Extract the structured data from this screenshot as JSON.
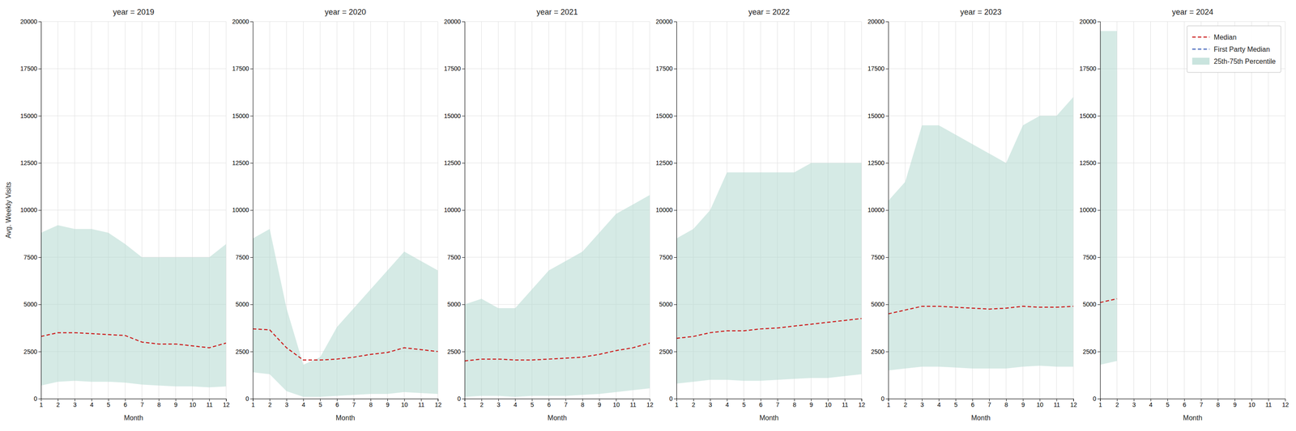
{
  "chart_data": [
    {
      "type": "line",
      "title": "year = 2019",
      "xlabel": "Month",
      "ylabel": "Avg. Weekly Visits",
      "x": [
        1,
        2,
        3,
        4,
        5,
        6,
        7,
        8,
        9,
        10,
        11,
        12
      ],
      "xlim": [
        1,
        12
      ],
      "xticks": [
        1,
        2,
        3,
        4,
        5,
        6,
        7,
        8,
        9,
        10,
        11,
        12
      ],
      "ylim": [
        0,
        20000
      ],
      "yticks": [
        0,
        2500,
        5000,
        7500,
        10000,
        12500,
        15000,
        17500,
        20000
      ],
      "grid": true,
      "legend": false,
      "series": [
        {
          "name": "25th-75th Percentile",
          "type": "band",
          "color": "#b2d8d0",
          "low": [
            700,
            900,
            950,
            900,
            900,
            850,
            750,
            700,
            650,
            650,
            600,
            650
          ],
          "high": [
            8800,
            9200,
            9000,
            9000,
            8800,
            8200,
            7500,
            7500,
            7500,
            7500,
            7500,
            8200
          ]
        },
        {
          "name": "Median",
          "type": "line",
          "color": "#cc2222",
          "line_style": "dashed",
          "values": [
            3300,
            3500,
            3500,
            3450,
            3400,
            3350,
            3000,
            2900,
            2900,
            2800,
            2700,
            2950
          ]
        }
      ]
    },
    {
      "type": "line",
      "title": "year = 2020",
      "xlabel": "Month",
      "x": [
        1,
        2,
        3,
        4,
        5,
        6,
        7,
        8,
        9,
        10,
        11,
        12
      ],
      "xlim": [
        1,
        12
      ],
      "xticks": [
        1,
        2,
        3,
        4,
        5,
        6,
        7,
        8,
        9,
        10,
        11,
        12
      ],
      "ylim": [
        0,
        20000
      ],
      "yticks": [
        0,
        2500,
        5000,
        7500,
        10000,
        12500,
        15000,
        17500,
        20000
      ],
      "grid": true,
      "legend": false,
      "series": [
        {
          "name": "25th-75th Percentile",
          "type": "band",
          "color": "#b2d8d0",
          "low": [
            1400,
            1300,
            400,
            100,
            100,
            150,
            200,
            250,
            250,
            350,
            300,
            250
          ],
          "high": [
            8500,
            9000,
            4800,
            1800,
            2200,
            3800,
            4800,
            5800,
            6800,
            7800,
            7300,
            6800
          ]
        },
        {
          "name": "Median",
          "type": "line",
          "color": "#cc2222",
          "line_style": "dashed",
          "values": [
            3700,
            3650,
            2700,
            2050,
            2050,
            2100,
            2200,
            2350,
            2450,
            2700,
            2600,
            2500
          ]
        }
      ]
    },
    {
      "type": "line",
      "title": "year = 2021",
      "xlabel": "Month",
      "x": [
        1,
        2,
        3,
        4,
        5,
        6,
        7,
        8,
        9,
        10,
        11,
        12
      ],
      "xlim": [
        1,
        12
      ],
      "xticks": [
        1,
        2,
        3,
        4,
        5,
        6,
        7,
        8,
        9,
        10,
        11,
        12
      ],
      "ylim": [
        0,
        20000
      ],
      "yticks": [
        0,
        2500,
        5000,
        7500,
        10000,
        12500,
        15000,
        17500,
        20000
      ],
      "grid": true,
      "legend": false,
      "series": [
        {
          "name": "25th-75th Percentile",
          "type": "band",
          "color": "#b2d8d0",
          "low": [
            100,
            150,
            150,
            100,
            150,
            150,
            150,
            200,
            250,
            350,
            450,
            550
          ],
          "high": [
            5000,
            5300,
            4800,
            4800,
            5800,
            6800,
            7300,
            7800,
            8800,
            9800,
            10300,
            10800
          ]
        },
        {
          "name": "Median",
          "type": "line",
          "color": "#cc2222",
          "line_style": "dashed",
          "values": [
            2000,
            2100,
            2100,
            2050,
            2050,
            2100,
            2150,
            2200,
            2350,
            2550,
            2700,
            2950
          ]
        }
      ]
    },
    {
      "type": "line",
      "title": "year = 2022",
      "xlabel": "Month",
      "x": [
        1,
        2,
        3,
        4,
        5,
        6,
        7,
        8,
        9,
        10,
        11,
        12
      ],
      "xlim": [
        1,
        12
      ],
      "xticks": [
        1,
        2,
        3,
        4,
        5,
        6,
        7,
        8,
        9,
        10,
        11,
        12
      ],
      "ylim": [
        0,
        20000
      ],
      "yticks": [
        0,
        2500,
        5000,
        7500,
        10000,
        12500,
        15000,
        17500,
        20000
      ],
      "grid": true,
      "legend": false,
      "series": [
        {
          "name": "25th-75th Percentile",
          "type": "band",
          "color": "#b2d8d0",
          "low": [
            800,
            900,
            1000,
            1000,
            950,
            950,
            1000,
            1050,
            1100,
            1100,
            1200,
            1300
          ],
          "high": [
            8500,
            9000,
            10000,
            12000,
            12000,
            12000,
            12000,
            12000,
            12500,
            12500,
            12500,
            12500
          ]
        },
        {
          "name": "Median",
          "type": "line",
          "color": "#cc2222",
          "line_style": "dashed",
          "values": [
            3200,
            3300,
            3500,
            3600,
            3600,
            3700,
            3750,
            3850,
            3950,
            4050,
            4150,
            4250
          ]
        }
      ]
    },
    {
      "type": "line",
      "title": "year = 2023",
      "xlabel": "Month",
      "x": [
        1,
        2,
        3,
        4,
        5,
        6,
        7,
        8,
        9,
        10,
        11,
        12
      ],
      "xlim": [
        1,
        12
      ],
      "xticks": [
        1,
        2,
        3,
        4,
        5,
        6,
        7,
        8,
        9,
        10,
        11,
        12
      ],
      "ylim": [
        0,
        20000
      ],
      "yticks": [
        0,
        2500,
        5000,
        7500,
        10000,
        12500,
        15000,
        17500,
        20000
      ],
      "grid": true,
      "legend": false,
      "series": [
        {
          "name": "25th-75th Percentile",
          "type": "band",
          "color": "#b2d8d0",
          "low": [
            1500,
            1600,
            1700,
            1700,
            1650,
            1600,
            1600,
            1600,
            1700,
            1750,
            1700,
            1700
          ],
          "high": [
            10500,
            11500,
            14500,
            14500,
            14000,
            13500,
            13000,
            12500,
            14500,
            15000,
            15000,
            16000
          ]
        },
        {
          "name": "Median",
          "type": "line",
          "color": "#cc2222",
          "line_style": "dashed",
          "values": [
            4500,
            4700,
            4900,
            4900,
            4850,
            4800,
            4750,
            4800,
            4900,
            4850,
            4850,
            4900
          ]
        }
      ]
    },
    {
      "type": "line",
      "title": "year = 2024",
      "xlabel": "Month",
      "x": [
        1,
        2
      ],
      "xlim": [
        1,
        12
      ],
      "xticks": [
        1,
        2,
        3,
        4,
        5,
        6,
        7,
        8,
        9,
        10,
        11,
        12
      ],
      "ylim": [
        0,
        20000
      ],
      "yticks": [
        0,
        2500,
        5000,
        7500,
        10000,
        12500,
        15000,
        17500,
        20000
      ],
      "grid": true,
      "legend": "upper right",
      "series": [
        {
          "name": "Median",
          "type": "line",
          "color": "#cc2222",
          "line_style": "dashed",
          "values": [
            5100,
            5300
          ]
        },
        {
          "name": "First Party Median",
          "type": "line",
          "color": "#4466bb",
          "line_style": "dashed",
          "values": [
            null,
            null
          ]
        },
        {
          "name": "25th-75th Percentile",
          "type": "band",
          "color": "#b2d8d0",
          "low": [
            1800,
            2000
          ],
          "high": [
            19500,
            19500
          ]
        }
      ]
    }
  ]
}
